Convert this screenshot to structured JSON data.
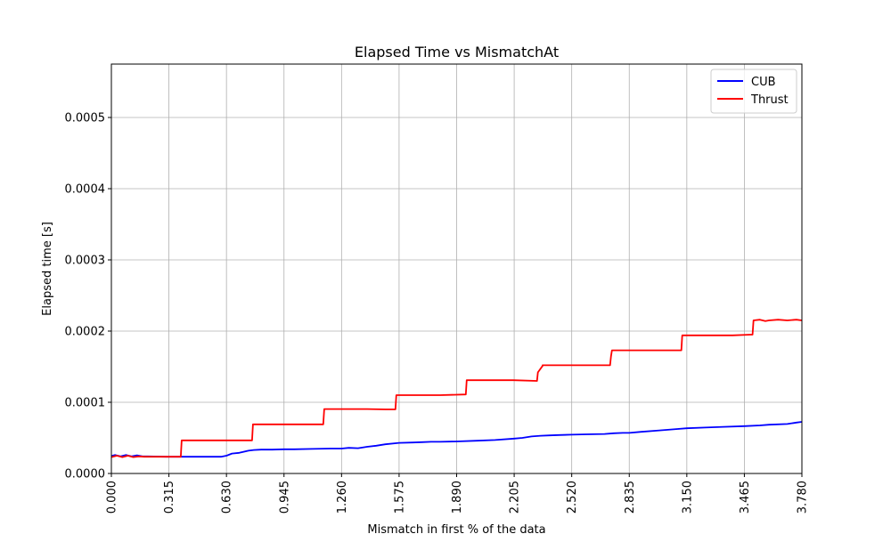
{
  "chart_data": {
    "type": "line",
    "title": "Elapsed Time vs MismatchAt",
    "xlabel": "Mismatch in first % of the data",
    "ylabel": "Elapsed time [s]",
    "xlim": [
      0.0,
      3.78
    ],
    "ylim": [
      0.0,
      0.000575
    ],
    "grid": true,
    "legend_position": "top-right",
    "x_ticks": [
      "0.000",
      "0.315",
      "0.630",
      "0.945",
      "1.260",
      "1.575",
      "1.890",
      "2.205",
      "2.520",
      "2.835",
      "3.150",
      "3.465",
      "3.780"
    ],
    "y_ticks": [
      "0.0000",
      "0.0001",
      "0.0002",
      "0.0003",
      "0.0004",
      "0.0005"
    ],
    "series": [
      {
        "name": "CUB",
        "color": "#0000ff",
        "x": [
          0.0,
          0.02,
          0.05,
          0.08,
          0.11,
          0.14,
          0.17,
          0.2,
          0.3,
          0.4,
          0.5,
          0.6,
          0.63,
          0.66,
          0.7,
          0.75,
          0.78,
          0.82,
          0.88,
          0.945,
          1.0,
          1.1,
          1.2,
          1.26,
          1.3,
          1.35,
          1.4,
          1.45,
          1.5,
          1.575,
          1.65,
          1.7,
          1.75,
          1.8,
          1.89,
          2.0,
          2.1,
          2.205,
          2.25,
          2.3,
          2.35,
          2.4,
          2.45,
          2.52,
          2.6,
          2.7,
          2.75,
          2.8,
          2.835,
          2.9,
          3.0,
          3.1,
          3.15,
          3.25,
          3.35,
          3.465,
          3.55,
          3.6,
          3.7,
          3.75,
          3.78
        ],
        "values": [
          2.45e-05,
          2.6e-05,
          2.4e-05,
          2.6e-05,
          2.4e-05,
          2.55e-05,
          2.4e-05,
          2.4e-05,
          2.35e-05,
          2.35e-05,
          2.35e-05,
          2.35e-05,
          2.5e-05,
          2.8e-05,
          2.9e-05,
          3.2e-05,
          3.3e-05,
          3.35e-05,
          3.35e-05,
          3.4e-05,
          3.4e-05,
          3.45e-05,
          3.5e-05,
          3.5e-05,
          3.6e-05,
          3.55e-05,
          3.75e-05,
          3.9e-05,
          4.1e-05,
          4.3e-05,
          4.35e-05,
          4.4e-05,
          4.45e-05,
          4.45e-05,
          4.5e-05,
          4.6e-05,
          4.7e-05,
          4.9e-05,
          5e-05,
          5.2e-05,
          5.3e-05,
          5.35e-05,
          5.4e-05,
          5.45e-05,
          5.5e-05,
          5.55e-05,
          5.65e-05,
          5.7e-05,
          5.7e-05,
          5.85e-05,
          6.05e-05,
          6.25e-05,
          6.35e-05,
          6.45e-05,
          6.55e-05,
          6.65e-05,
          6.75e-05,
          6.85e-05,
          6.95e-05,
          7.15e-05,
          7.25e-05
        ]
      },
      {
        "name": "Thrust",
        "color": "#ff0000",
        "x": [
          0.0,
          0.03,
          0.06,
          0.09,
          0.12,
          0.15,
          0.18,
          0.25,
          0.3,
          0.38,
          0.385,
          0.5,
          0.6,
          0.7,
          0.77,
          0.775,
          0.9,
          1.0,
          1.1,
          1.16,
          1.165,
          1.3,
          1.4,
          1.5,
          1.555,
          1.56,
          1.7,
          1.8,
          1.94,
          1.945,
          2.1,
          2.2,
          2.33,
          2.335,
          2.36,
          2.36,
          2.4,
          2.5,
          2.6,
          2.73,
          2.735,
          2.74,
          2.9,
          3.0,
          3.1,
          3.12,
          3.125,
          3.3,
          3.4,
          3.5,
          3.51,
          3.515,
          3.55,
          3.58,
          3.6,
          3.65,
          3.7,
          3.75,
          3.78
        ],
        "values": [
          2.3e-05,
          2.5e-05,
          2.3e-05,
          2.5e-05,
          2.3e-05,
          2.4e-05,
          2.35e-05,
          2.35e-05,
          2.35e-05,
          2.35e-05,
          4.65e-05,
          4.65e-05,
          4.65e-05,
          4.65e-05,
          4.65e-05,
          6.9e-05,
          6.9e-05,
          6.9e-05,
          6.9e-05,
          6.9e-05,
          9.05e-05,
          9.05e-05,
          9.05e-05,
          9e-05,
          9e-05,
          0.00011,
          0.00011,
          0.00011,
          0.000111,
          0.000131,
          0.000131,
          0.000131,
          0.00013,
          0.000142,
          0.000151,
          0.000152,
          0.000152,
          0.000152,
          0.000152,
          0.000152,
          0.000164,
          0.000173,
          0.000173,
          0.000173,
          0.000173,
          0.000173,
          0.000194,
          0.000194,
          0.000194,
          0.000195,
          0.000195,
          0.000215,
          0.000216,
          0.000214,
          0.000215,
          0.000216,
          0.000215,
          0.000216,
          0.000215
        ]
      }
    ]
  }
}
